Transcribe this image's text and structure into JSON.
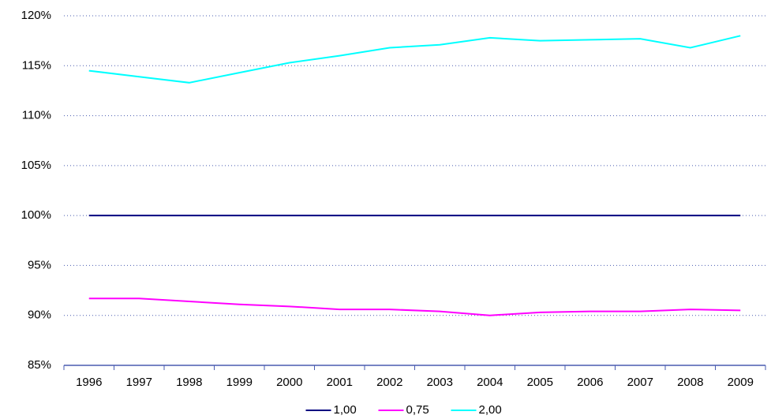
{
  "chart_data": {
    "type": "line",
    "categories": [
      "1996",
      "1997",
      "1998",
      "1999",
      "2000",
      "2001",
      "2002",
      "2003",
      "2004",
      "2005",
      "2006",
      "2007",
      "2008",
      "2009"
    ],
    "series": [
      {
        "name": "1,00",
        "color": "#000080",
        "values": [
          100,
          100,
          100,
          100,
          100,
          100,
          100,
          100,
          100,
          100,
          100,
          100,
          100,
          100
        ]
      },
      {
        "name": "0,75",
        "color": "#ff00ff",
        "values": [
          91.7,
          91.7,
          91.4,
          91.1,
          90.9,
          90.6,
          90.6,
          90.4,
          90.0,
          90.3,
          90.4,
          90.4,
          90.6,
          90.5
        ]
      },
      {
        "name": "2,00",
        "color": "#00ffff",
        "values": [
          114.5,
          113.9,
          113.3,
          114.3,
          115.3,
          116.0,
          116.8,
          117.1,
          117.8,
          117.5,
          117.6,
          117.7,
          116.8,
          118.0
        ]
      }
    ],
    "ylim": [
      85,
      120
    ],
    "yticks": [
      {
        "value": 85,
        "label": "85%"
      },
      {
        "value": 90,
        "label": "90%"
      },
      {
        "value": 95,
        "label": "95%"
      },
      {
        "value": 100,
        "label": "100%"
      },
      {
        "value": 105,
        "label": "105%"
      },
      {
        "value": 110,
        "label": "110%"
      },
      {
        "value": 115,
        "label": "115%"
      },
      {
        "value": 120,
        "label": "120%"
      }
    ],
    "grid": true,
    "legend": "bottom"
  }
}
